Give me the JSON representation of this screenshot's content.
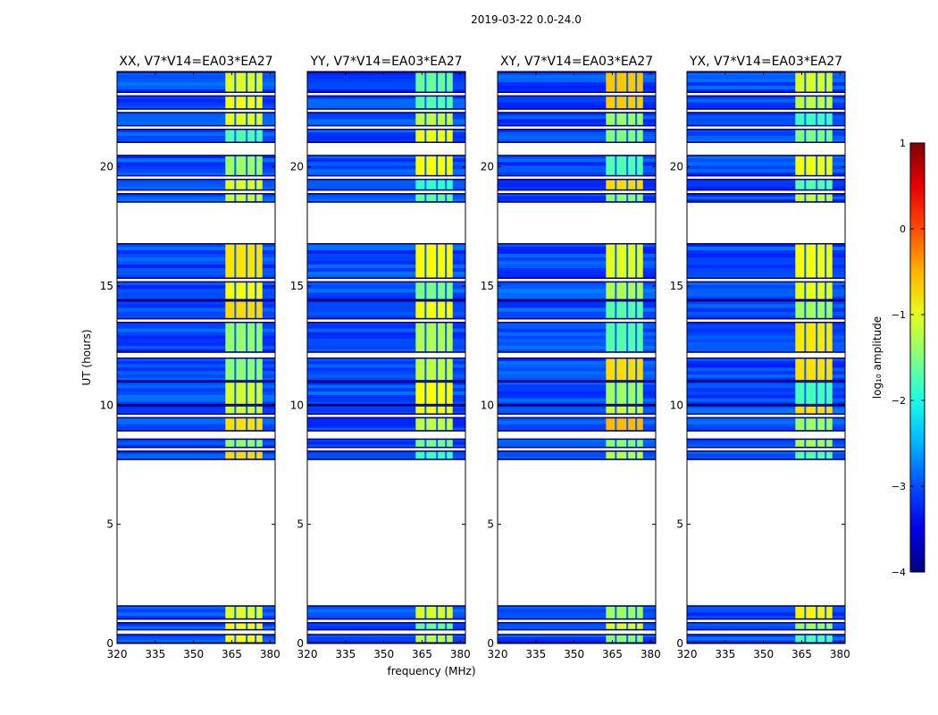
{
  "chart_data": {
    "type": "heatmap",
    "suptitle": "2019-03-22 0.0-24.0",
    "xlabel": "frequency (MHz)",
    "ylabel": "UT (hours)",
    "xlim": [
      320,
      382
    ],
    "ylim": [
      0,
      24
    ],
    "xticks": [
      320,
      335,
      350,
      365,
      380
    ],
    "yticks": [
      0,
      5,
      10,
      15,
      20
    ],
    "panels": [
      {
        "id": "xx",
        "title": "XX, V7*V14=EA03*EA27",
        "correlation": "XX",
        "bright_scale": 1.0
      },
      {
        "id": "yy",
        "title": "YY, V7*V14=EA03*EA27",
        "correlation": "YY",
        "bright_scale": 0.9
      },
      {
        "id": "xy",
        "title": "XY, V7*V14=EA03*EA27",
        "correlation": "XY",
        "bright_scale": 1.0
      },
      {
        "id": "yx",
        "title": "YX, V7*V14=EA03*EA27",
        "correlation": "YX",
        "bright_scale": 0.95
      }
    ],
    "data_segments_hours": [
      [
        0.0,
        0.4
      ],
      [
        0.55,
        0.9
      ],
      [
        1.0,
        1.6
      ],
      [
        7.7,
        8.1
      ],
      [
        8.2,
        8.6
      ],
      [
        8.9,
        9.5
      ],
      [
        9.6,
        10.0
      ],
      [
        10.0,
        11.0
      ],
      [
        11.0,
        12.0
      ],
      [
        12.2,
        13.5
      ],
      [
        13.6,
        14.4
      ],
      [
        14.4,
        15.2
      ],
      [
        15.3,
        16.8
      ],
      [
        18.5,
        18.9
      ],
      [
        19.0,
        19.5
      ],
      [
        19.6,
        20.5
      ],
      [
        21.0,
        21.6
      ],
      [
        21.7,
        22.3
      ],
      [
        22.4,
        23.0
      ],
      [
        23.1,
        24.0
      ]
    ],
    "bright_band_mhz": [
      362.5,
      377.0
    ],
    "bright_channel_gaps_mhz": [
      366.0,
      370.5,
      374.0
    ],
    "colorbar": {
      "label": "log₁₀ amplitude",
      "range": [
        -4,
        1
      ],
      "ticks": [
        1,
        0,
        -1,
        -2,
        -3,
        -4
      ],
      "colormap": "jet"
    }
  }
}
